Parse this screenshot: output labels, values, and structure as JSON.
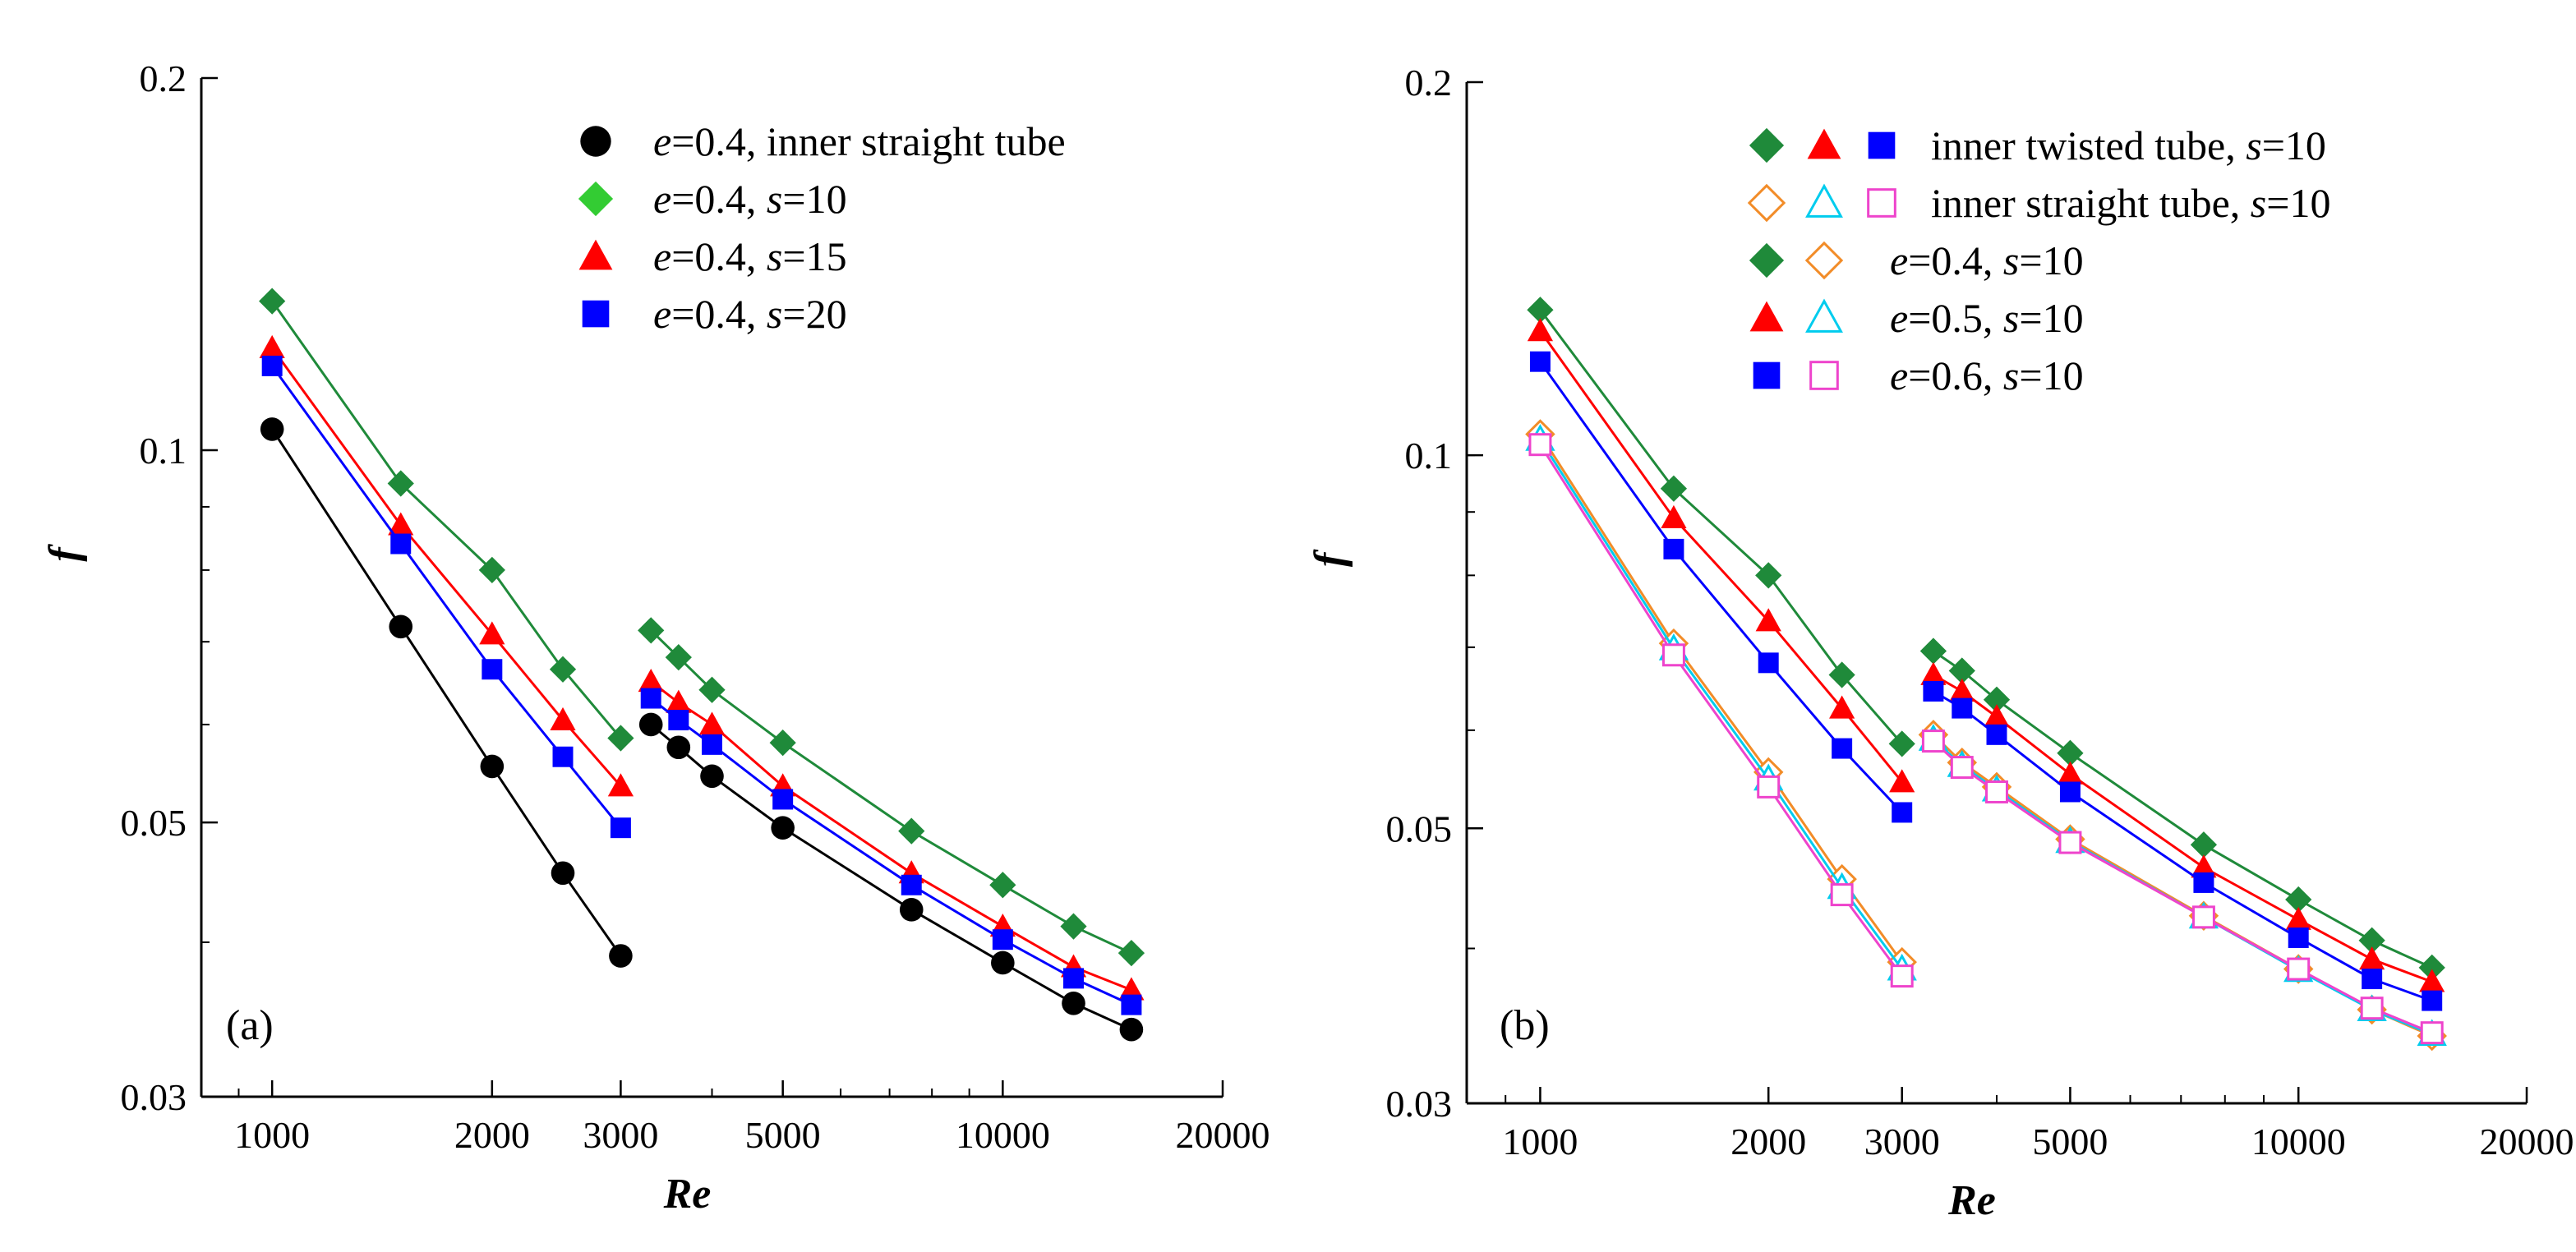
{
  "chart_data": [
    {
      "type": "line",
      "panel_label": "(a)",
      "xlabel": "Re",
      "ylabel": "f",
      "xscale": "log",
      "yscale": "log",
      "xlim": [
        800,
        20000
      ],
      "ylim": [
        0.03,
        0.2
      ],
      "x_ticks": [
        "1000",
        "2000",
        "3000",
        "5000",
        "10000",
        "20000"
      ],
      "y_ticks": [
        "0.03",
        "0.05",
        "0.1",
        "0.2"
      ],
      "legend_position": "top-right",
      "legend": [
        {
          "marker": "circle",
          "color": "#000000",
          "filled": true,
          "prefix": "e",
          "text": "=0.4, inner straight tube"
        },
        {
          "marker": "diamond",
          "color": "#33cc33",
          "filled": true,
          "prefix": "e",
          "text": "=0.4, ",
          "var": "s",
          "value": "=10"
        },
        {
          "marker": "triangle",
          "color": "#ff0000",
          "filled": true,
          "prefix": "e",
          "text": "=0.4, ",
          "var": "s",
          "value": "=15"
        },
        {
          "marker": "square",
          "color": "#0000ff",
          "filled": true,
          "prefix": "e",
          "text": "=0.4, ",
          "var": "s",
          "value": "=20"
        }
      ],
      "series": [
        {
          "name": "e=0.4, inner straight tube",
          "marker": "circle",
          "color": "#000000",
          "line_color": "#000000",
          "filled": true,
          "segments": [
            {
              "x": [
                1000,
                1500,
                2000,
                2500,
                3000
              ],
              "y": [
                0.104,
                0.072,
                0.0555,
                0.0455,
                0.039
              ]
            },
            {
              "x": [
                3300,
                3600,
                4000,
                5000,
                7500,
                10000,
                12500,
                15000
              ],
              "y": [
                0.06,
                0.0575,
                0.0545,
                0.0495,
                0.0425,
                0.0385,
                0.0357,
                0.034
              ]
            }
          ]
        },
        {
          "name": "e=0.4, s=10",
          "marker": "diamond",
          "color": "#1f8a3a",
          "line_color": "#1f8a3a",
          "filled": true,
          "segments": [
            {
              "x": [
                1000,
                1500,
                2000,
                2500,
                3000
              ],
              "y": [
                0.132,
                0.094,
                0.08,
                0.0665,
                0.0585
              ]
            },
            {
              "x": [
                3300,
                3600,
                4000,
                5000,
                7500,
                10000,
                12500,
                15000
              ],
              "y": [
                0.0715,
                0.068,
                0.064,
                0.058,
                0.0492,
                0.0445,
                0.0412,
                0.0392
              ]
            }
          ]
        },
        {
          "name": "e=0.4, s=15",
          "marker": "triangle",
          "color": "#ff0000",
          "line_color": "#ff0000",
          "filled": true,
          "segments": [
            {
              "x": [
                1000,
                1500,
                2000,
                2500,
                3000
              ],
              "y": [
                0.121,
                0.087,
                0.071,
                0.0605,
                0.0535
              ]
            },
            {
              "x": [
                3300,
                3600,
                4000,
                5000,
                7500,
                10000,
                12500,
                15000
              ],
              "y": [
                0.065,
                0.0625,
                0.06,
                0.0535,
                0.0455,
                0.0412,
                0.0382,
                0.0366
              ]
            }
          ]
        },
        {
          "name": "e=0.4, s=20",
          "marker": "square",
          "color": "#0000ff",
          "line_color": "#0000ff",
          "filled": true,
          "segments": [
            {
              "x": [
                1000,
                1500,
                2000,
                2500,
                3000
              ],
              "y": [
                0.117,
                0.084,
                0.0665,
                0.0565,
                0.0495
              ]
            },
            {
              "x": [
                3300,
                3600,
                4000,
                5000,
                7500,
                10000,
                12500,
                15000
              ],
              "y": [
                0.063,
                0.0605,
                0.0578,
                0.0522,
                0.0445,
                0.0402,
                0.0374,
                0.0356
              ]
            }
          ]
        }
      ]
    },
    {
      "type": "line",
      "panel_label": "(b)",
      "xlabel": "Re",
      "ylabel": "f",
      "xscale": "log",
      "yscale": "log",
      "xlim": [
        800,
        20000
      ],
      "ylim": [
        0.03,
        0.2
      ],
      "x_ticks": [
        "1000",
        "2000",
        "3000",
        "5000",
        "10000",
        "20000"
      ],
      "y_ticks": [
        "0.03",
        "0.05",
        "0.1",
        "0.2"
      ],
      "legend_position": "top-right",
      "legend": [
        {
          "markers": [
            {
              "marker": "diamond",
              "color": "#1f8a3a",
              "filled": true
            },
            {
              "marker": "triangle",
              "color": "#ff0000",
              "filled": true
            },
            {
              "marker": "square",
              "color": "#0000ff",
              "filled": true
            }
          ],
          "prefix": "",
          "text": "inner twisted tube, ",
          "var": "s",
          "value": "=10"
        },
        {
          "markers": [
            {
              "marker": "diamond",
              "color": "#f28c28",
              "filled": false
            },
            {
              "marker": "triangle",
              "color": "#00ccee",
              "filled": false
            },
            {
              "marker": "square",
              "color": "#ee44cc",
              "filled": false
            }
          ],
          "prefix": "",
          "text": "inner straight tube, ",
          "var": "s",
          "value": "=10"
        },
        {
          "markers": [
            {
              "marker": "diamond",
              "color": "#1f8a3a",
              "filled": true
            },
            {
              "marker": "diamond",
              "color": "#f28c28",
              "filled": false
            }
          ],
          "prefix": "e",
          "text": "=0.4, ",
          "var": "s",
          "value": "=10"
        },
        {
          "markers": [
            {
              "marker": "triangle",
              "color": "#ff0000",
              "filled": true
            },
            {
              "marker": "triangle",
              "color": "#00ccee",
              "filled": false
            }
          ],
          "prefix": "e",
          "text": "=0.5, ",
          "var": "s",
          "value": "=10"
        },
        {
          "markers": [
            {
              "marker": "square",
              "color": "#0000ff",
              "filled": true
            },
            {
              "marker": "square",
              "color": "#ee44cc",
              "filled": false
            }
          ],
          "prefix": "e",
          "text": "=0.6, ",
          "var": "s",
          "value": "=10"
        }
      ],
      "series": [
        {
          "name": "e=0.4, s=10, inner twisted tube",
          "marker": "diamond",
          "color": "#1f8a3a",
          "line_color": "#1f8a3a",
          "filled": true,
          "segments": [
            {
              "x": [
                1000,
                1500,
                2000,
                2500,
                3000
              ],
              "y": [
                0.131,
                0.094,
                0.08,
                0.0665,
                0.0585
              ]
            },
            {
              "x": [
                3300,
                3600,
                4000,
                5000,
                7500,
                10000,
                12500,
                15000
              ],
              "y": [
                0.0695,
                0.067,
                0.0635,
                0.0575,
                0.0485,
                0.0438,
                0.0406,
                0.0386
              ]
            }
          ]
        },
        {
          "name": "e=0.5, s=10, inner twisted tube",
          "marker": "triangle",
          "color": "#ff0000",
          "line_color": "#ff0000",
          "filled": true,
          "segments": [
            {
              "x": [
                1000,
                1500,
                2000,
                2500,
                3000
              ],
              "y": [
                0.126,
                0.089,
                0.0735,
                0.0625,
                0.0545
              ]
            },
            {
              "x": [
                3300,
                3600,
                4000,
                5000,
                7500,
                10000,
                12500,
                15000
              ],
              "y": [
                0.0665,
                0.0645,
                0.0615,
                0.0553,
                0.0465,
                0.0422,
                0.0392,
                0.0376
              ]
            }
          ]
        },
        {
          "name": "e=0.6, s=10, inner twisted tube",
          "marker": "square",
          "color": "#0000ff",
          "line_color": "#0000ff",
          "filled": true,
          "segments": [
            {
              "x": [
                1000,
                1500,
                2000,
                2500,
                3000
              ],
              "y": [
                0.119,
                0.084,
                0.068,
                0.058,
                0.0515
              ]
            },
            {
              "x": [
                3300,
                3600,
                4000,
                5000,
                7500,
                10000,
                12500,
                15000
              ],
              "y": [
                0.0645,
                0.0625,
                0.0595,
                0.0535,
                0.0452,
                0.0408,
                0.0378,
                0.0363
              ]
            }
          ]
        },
        {
          "name": "e=0.4, s=10, inner straight tube",
          "marker": "diamond",
          "color": "#f28c28",
          "line_color": "#f28c28",
          "filled": false,
          "segments": [
            {
              "x": [
                1000,
                1500,
                2000,
                2500,
                3000
              ],
              "y": [
                0.104,
                0.0705,
                0.0555,
                0.0455,
                0.039
              ]
            },
            {
              "x": [
                3300,
                3600,
                4000,
                5000,
                7500,
                10000,
                12500,
                15000
              ],
              "y": [
                0.0595,
                0.0565,
                0.054,
                0.049,
                0.0425,
                0.0385,
                0.0357,
                0.034
              ]
            }
          ]
        },
        {
          "name": "e=0.5, s=10, inner straight tube",
          "marker": "triangle",
          "color": "#00ccee",
          "line_color": "#00ccee",
          "filled": false,
          "segments": [
            {
              "x": [
                1000,
                1500,
                2000,
                2500,
                3000
              ],
              "y": [
                0.103,
                0.0698,
                0.0548,
                0.0448,
                0.0385
              ]
            },
            {
              "x": [
                3300,
                3600,
                4000,
                5000,
                7500,
                10000,
                12500,
                15000
              ],
              "y": [
                0.059,
                0.0562,
                0.0537,
                0.0488,
                0.0424,
                0.0384,
                0.0357,
                0.0341
              ]
            }
          ]
        },
        {
          "name": "e=0.6, s=10, inner straight tube",
          "marker": "square",
          "color": "#ee44cc",
          "line_color": "#ee44cc",
          "filled": false,
          "segments": [
            {
              "x": [
                1000,
                1500,
                2000,
                2500,
                3000
              ],
              "y": [
                0.102,
                0.069,
                0.054,
                0.0442,
                0.038
              ]
            },
            {
              "x": [
                3300,
                3600,
                4000,
                5000,
                7500,
                10000,
                12500,
                15000
              ],
              "y": [
                0.0588,
                0.056,
                0.0535,
                0.0487,
                0.0424,
                0.0385,
                0.0358,
                0.0342
              ]
            }
          ]
        }
      ]
    }
  ]
}
